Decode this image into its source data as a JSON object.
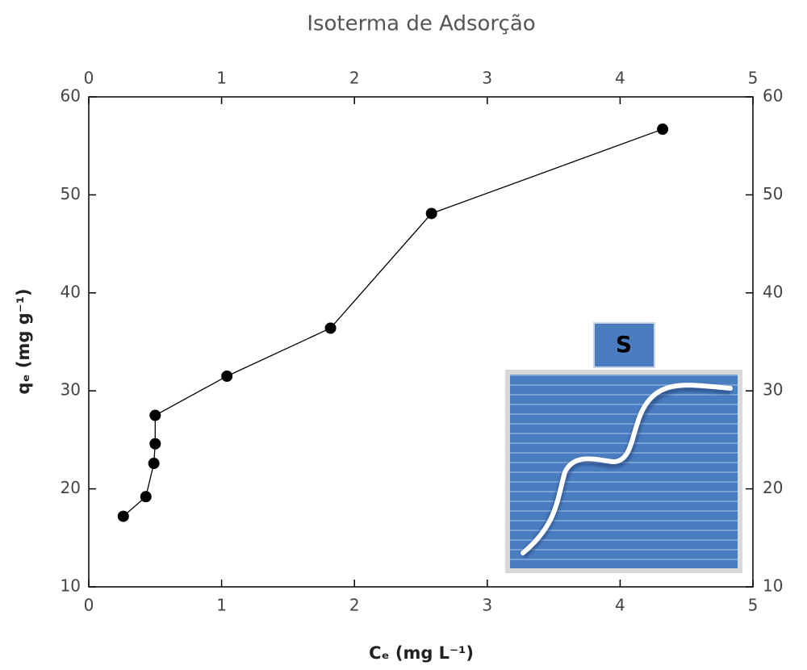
{
  "chart_data": {
    "type": "line",
    "title": "Isoterma de Adsorção",
    "x_label": "Cₑ (mg L⁻¹)",
    "y_label": "qₑ (mg g⁻¹)",
    "inset_label": "S",
    "series": [
      {
        "color": "#000000",
        "x": [
          0.26,
          0.43,
          0.49,
          0.5,
          0.5,
          1.04,
          1.82,
          2.58,
          4.32
        ],
        "values": [
          17.2,
          19.2,
          22.6,
          24.6,
          27.5,
          31.5,
          36.4,
          48.1,
          56.7
        ]
      }
    ],
    "xlim": [
      0,
      5
    ],
    "xticks": [
      0,
      1,
      2,
      3,
      4,
      5
    ],
    "ylim": [
      10,
      60
    ],
    "yticks": [
      10,
      20,
      30,
      40,
      50,
      60
    ]
  }
}
